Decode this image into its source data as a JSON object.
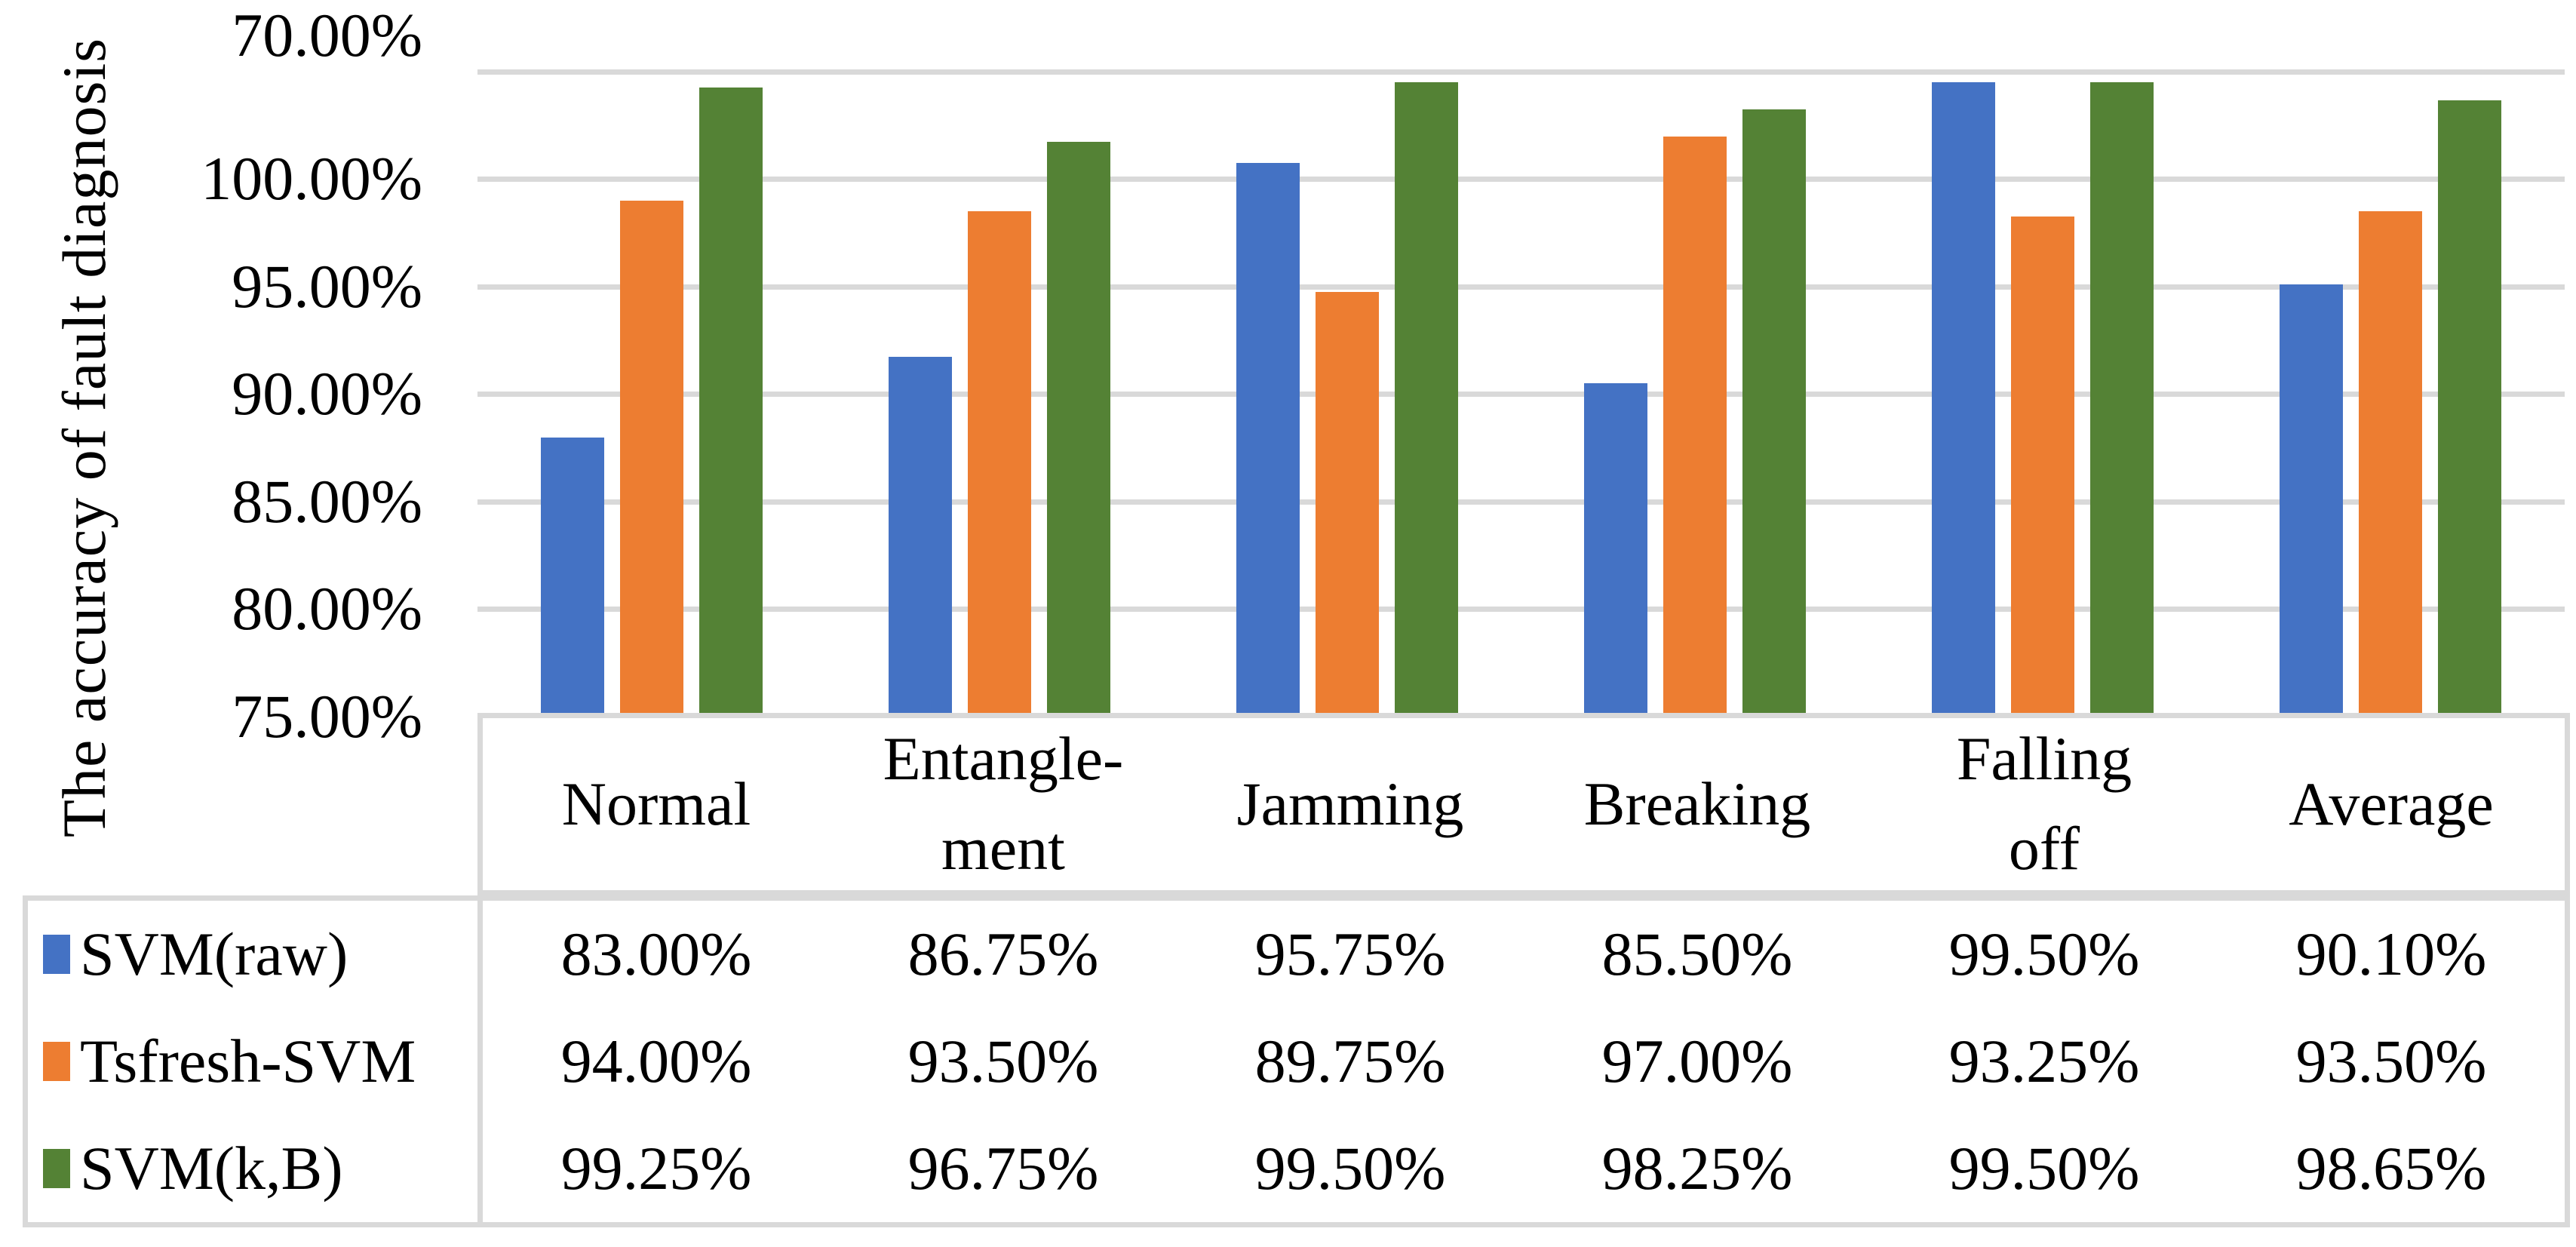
{
  "figure": {
    "background": "#FFFFFF",
    "grid_color": "#D9D9D9",
    "border_color": "#D9D9D9",
    "text_color": "#000000"
  },
  "chart_data": {
    "type": "bar",
    "title": "",
    "xlabel": "",
    "ylabel": "The accuracy of fault diagnosis",
    "ylim": [
      70,
      100
    ],
    "grid": true,
    "legend_position": "table-left-column",
    "categories": [
      "Normal",
      "Entangle-\nment",
      "Jamming",
      "Breaking",
      "Falling\noff",
      "Average"
    ],
    "yticks": [
      {
        "label": "100.00%",
        "value": 100
      },
      {
        "label": "95.00%",
        "value": 95
      },
      {
        "label": "90.00%",
        "value": 90
      },
      {
        "label": "85.00%",
        "value": 85
      },
      {
        "label": "80.00%",
        "value": 80
      },
      {
        "label": "75.00%",
        "value": 75
      },
      {
        "label": "70.00%",
        "value": 70
      }
    ],
    "series": [
      {
        "name": "SVM(raw)",
        "color": "#4472C4",
        "values": [
          83.0,
          86.75,
          95.75,
          85.5,
          99.5,
          90.1
        ],
        "display": [
          "83.00%",
          "86.75%",
          "95.75%",
          "85.50%",
          "99.50%",
          "90.10%"
        ]
      },
      {
        "name": "Tsfresh-SVM",
        "color": "#ED7D31",
        "values": [
          94.0,
          93.5,
          89.75,
          97.0,
          93.25,
          93.5
        ],
        "display": [
          "94.00%",
          "93.50%",
          "89.75%",
          "97.00%",
          "93.25%",
          "93.50%"
        ]
      },
      {
        "name": "SVM(k,B)",
        "color": "#548235",
        "values": [
          99.25,
          96.75,
          99.5,
          98.25,
          99.5,
          98.65
        ],
        "display": [
          "99.25%",
          "96.75%",
          "99.50%",
          "98.25%",
          "99.50%",
          "98.65%"
        ]
      }
    ]
  }
}
